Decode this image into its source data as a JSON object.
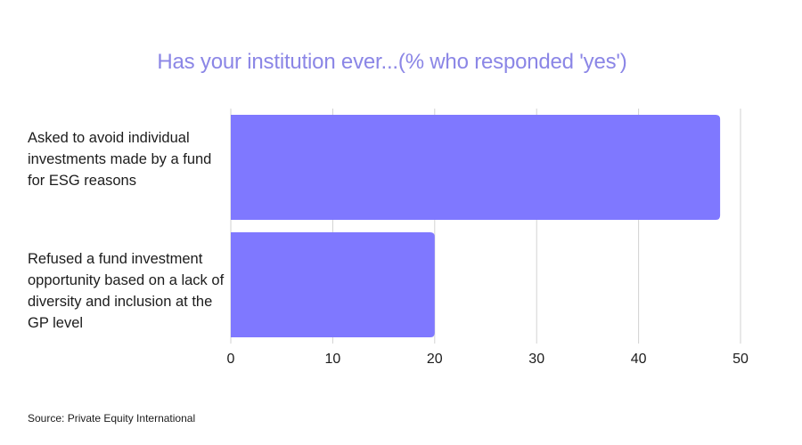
{
  "chart_data": {
    "type": "bar",
    "orientation": "horizontal",
    "title": "Has your institution ever...(% who responded 'yes')",
    "categories": [
      "Asked to avoid individual investments made by a fund for ESG reasons",
      "Refused a fund investment opportunity based on a lack of diversity and inclusion at the GP level"
    ],
    "values": [
      48,
      20
    ],
    "xlim": [
      0,
      50
    ],
    "xticks": [
      "0",
      "10",
      "20",
      "30",
      "40",
      "50"
    ],
    "xlabel": "",
    "ylabel": "",
    "grid": true,
    "legend": "none",
    "bar_color": "#7f78ff",
    "title_color": "#8b86e6",
    "gridline_color": "#d2d2d2"
  },
  "source": "Source: Private Equity International"
}
